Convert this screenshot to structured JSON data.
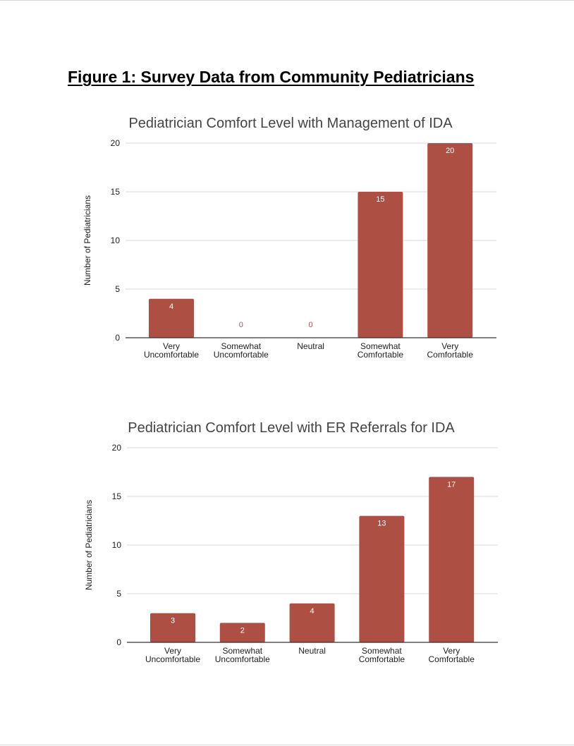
{
  "page": {
    "title": "Figure 1: Survey Data from Community Pediatricians"
  },
  "style": {
    "bar_color": "#ae4f44",
    "grid_color": "#d9d9d9",
    "axis_color": "#333333",
    "text_color": "#222222",
    "title_color": "#444444",
    "zero_label_color": "#ae4f44",
    "label_color": "#ffffff"
  },
  "chart_data": [
    {
      "type": "bar",
      "title": "Pediatrician Comfort Level with Management of IDA",
      "ylabel": "Number of Pediatricians",
      "xlabel": "",
      "categories": [
        [
          "Very",
          "Uncomfortable"
        ],
        [
          "Somewhat",
          "Uncomfortable"
        ],
        [
          "Neutral"
        ],
        [
          "Somewhat",
          "Comfortable"
        ],
        [
          "Very",
          "Comfortable"
        ]
      ],
      "values": [
        4,
        0,
        0,
        15,
        20
      ],
      "ylim": [
        0,
        20
      ],
      "yticks": [
        0,
        5,
        10,
        15,
        20
      ],
      "grid": true,
      "legend": "none"
    },
    {
      "type": "bar",
      "title": "Pediatrician Comfort Level with ER Referrals for IDA",
      "ylabel": "Number of Pediatricians",
      "xlabel": "",
      "categories": [
        [
          "Very",
          "Uncomfortable"
        ],
        [
          "Somewhat",
          "Uncomfortable"
        ],
        [
          "Neutral"
        ],
        [
          "Somewhat",
          "Comfortable"
        ],
        [
          "Very",
          "Comfortable"
        ]
      ],
      "values": [
        3,
        2,
        4,
        13,
        17
      ],
      "ylim": [
        0,
        20
      ],
      "yticks": [
        0,
        5,
        10,
        15,
        20
      ],
      "grid": true,
      "legend": "none"
    }
  ]
}
